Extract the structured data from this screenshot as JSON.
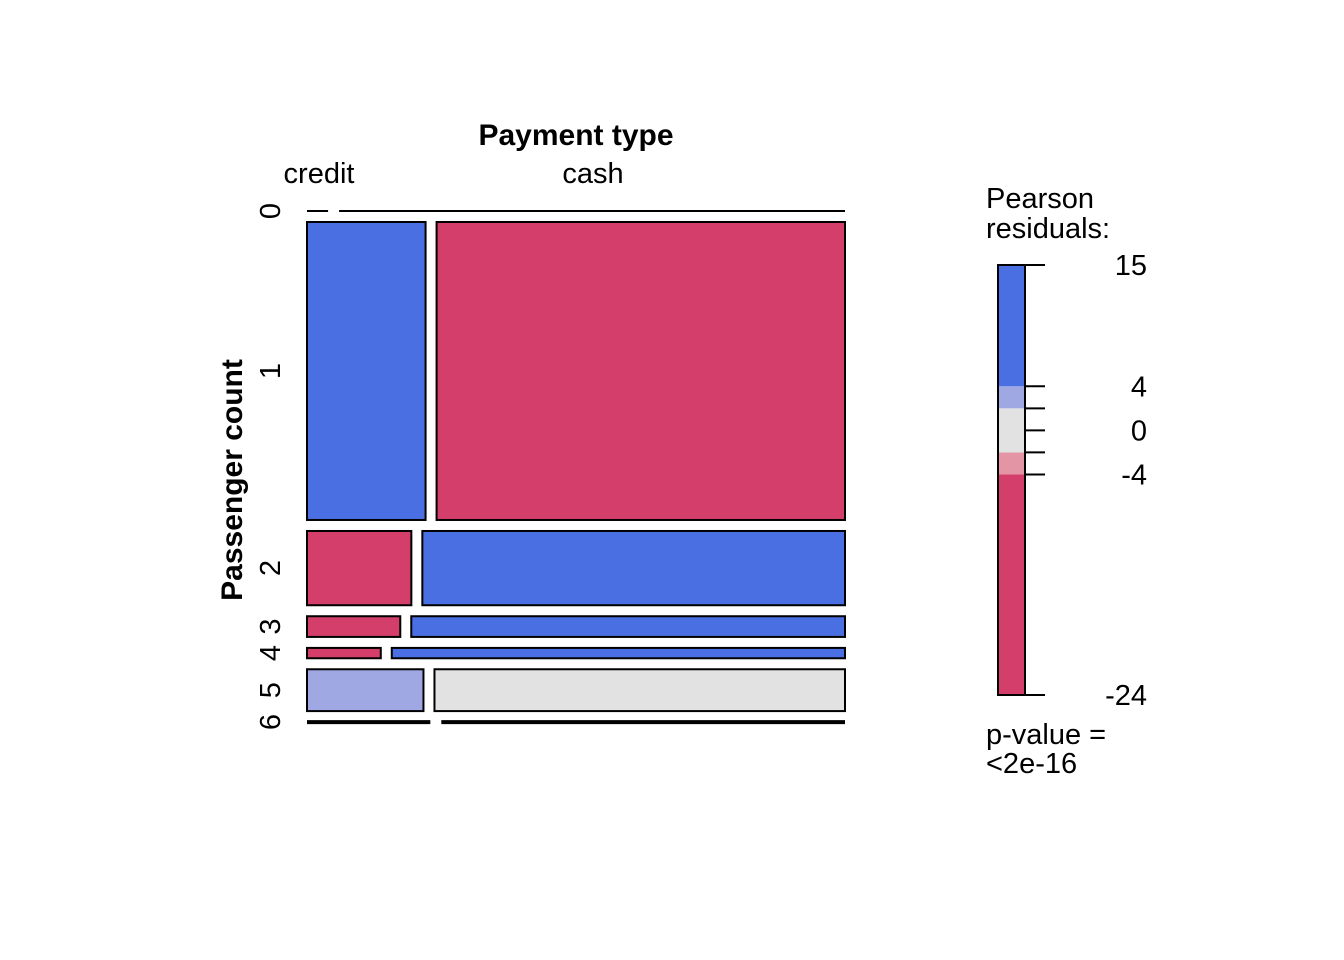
{
  "chart_data": {
    "type": "mosaic",
    "x_title": "Payment type",
    "y_title": "Passenger count",
    "columns": [
      "credit",
      "cash"
    ],
    "rows": [
      "0",
      "1",
      "2",
      "3",
      "4",
      "5",
      "6"
    ],
    "cells": [
      {
        "row": "0",
        "col": "credit",
        "share": 0.04,
        "residual": 0
      },
      {
        "row": "0",
        "col": "cash",
        "share": 0.96,
        "residual": 0
      },
      {
        "row": "1",
        "col": "credit",
        "share": 0.225,
        "residual": 15
      },
      {
        "row": "1",
        "col": "cash",
        "share": 0.775,
        "residual": -24
      },
      {
        "row": "2",
        "col": "credit",
        "share": 0.198,
        "residual": -24
      },
      {
        "row": "2",
        "col": "cash",
        "share": 0.802,
        "residual": 15
      },
      {
        "row": "3",
        "col": "credit",
        "share": 0.177,
        "residual": -24
      },
      {
        "row": "3",
        "col": "cash",
        "share": 0.823,
        "residual": 15
      },
      {
        "row": "4",
        "col": "credit",
        "share": 0.14,
        "residual": -24
      },
      {
        "row": "4",
        "col": "cash",
        "share": 0.86,
        "residual": 15
      },
      {
        "row": "5",
        "col": "credit",
        "share": 0.221,
        "residual": 3
      },
      {
        "row": "5",
        "col": "cash",
        "share": 0.779,
        "residual": 0
      },
      {
        "row": "6",
        "col": "credit",
        "share": 0.234,
        "residual": 0
      },
      {
        "row": "6",
        "col": "cash",
        "share": 0.766,
        "residual": 0
      }
    ],
    "row_shares": [
      0.0,
      0.634,
      0.158,
      0.044,
      0.022,
      0.089,
      0.0
    ],
    "legend": {
      "title_line1": "Pearson",
      "title_line2": "residuals:",
      "min": -24,
      "max": 15,
      "ticks": [
        "15",
        "4",
        "0",
        "-4",
        "-24"
      ],
      "tick_values": [
        15,
        4,
        0,
        -4,
        -24
      ],
      "thresholds": [
        -24,
        -4,
        -2,
        2,
        4,
        15
      ],
      "pvalue_line1": "p-value =",
      "pvalue_line2": "<2e-16"
    },
    "colors": {
      "strong_pos": "#4a6fe3",
      "mild_pos": "#9fa8e2",
      "neutral": "#e2e2e2",
      "mild_neg": "#e495a5",
      "strong_neg": "#d33f6a"
    }
  }
}
